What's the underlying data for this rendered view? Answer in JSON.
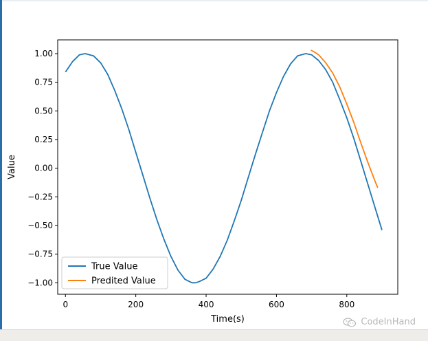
{
  "watermark": {
    "text": "CodeInHand",
    "icon": "wechat-icon"
  },
  "colors": {
    "true_series": "#1f77b4",
    "predicted_series": "#ff7f0e",
    "axes": "#000000",
    "background": "#ffffff"
  },
  "chart_data": {
    "type": "line",
    "title": "",
    "xlabel": "Time(s)",
    "ylabel": "Value",
    "xlim": [
      -22,
      945
    ],
    "ylim": [
      -1.1,
      1.12
    ],
    "xticks": [
      0,
      200,
      400,
      600,
      800
    ],
    "xtick_labels": [
      "0",
      "200",
      "400",
      "600",
      "800"
    ],
    "yticks": [
      1.0,
      0.75,
      0.5,
      0.25,
      0.0,
      -0.25,
      -0.5,
      -0.75,
      -1.0
    ],
    "ytick_labels": [
      "1.00",
      "0.75",
      "0.50",
      "0.25",
      "0.00",
      "−0.25",
      "−0.50",
      "−0.75",
      "−1.00"
    ],
    "grid": false,
    "legend": "lower left",
    "series": [
      {
        "name": "True Value",
        "color": "#1f77b4",
        "x": [
          0,
          20,
          40,
          56,
          80,
          100,
          120,
          140,
          160,
          180,
          200,
          220,
          240,
          260,
          280,
          300,
          320,
          340,
          360,
          370,
          380,
          400,
          420,
          440,
          460,
          480,
          500,
          520,
          540,
          560,
          580,
          600,
          620,
          640,
          660,
          683,
          700,
          720,
          740,
          760,
          780,
          800,
          820,
          840,
          860,
          880,
          900
        ],
        "y": [
          0.84,
          0.93,
          0.99,
          1.0,
          0.98,
          0.92,
          0.82,
          0.68,
          0.52,
          0.34,
          0.14,
          -0.06,
          -0.26,
          -0.45,
          -0.62,
          -0.77,
          -0.89,
          -0.97,
          -1.0,
          -1.0,
          -0.99,
          -0.96,
          -0.88,
          -0.77,
          -0.63,
          -0.46,
          -0.28,
          -0.08,
          0.12,
          0.31,
          0.5,
          0.66,
          0.8,
          0.91,
          0.98,
          1.0,
          0.99,
          0.94,
          0.86,
          0.75,
          0.6,
          0.44,
          0.26,
          0.06,
          -0.14,
          -0.34,
          -0.54
        ]
      },
      {
        "name": "Predited Value",
        "color": "#ff7f0e",
        "x": [
          698,
          710,
          720,
          740,
          760,
          780,
          800,
          820,
          840,
          860,
          880,
          888
        ],
        "y": [
          1.03,
          1.01,
          0.99,
          0.92,
          0.83,
          0.71,
          0.56,
          0.4,
          0.22,
          0.05,
          -0.11,
          -0.17
        ]
      }
    ]
  }
}
